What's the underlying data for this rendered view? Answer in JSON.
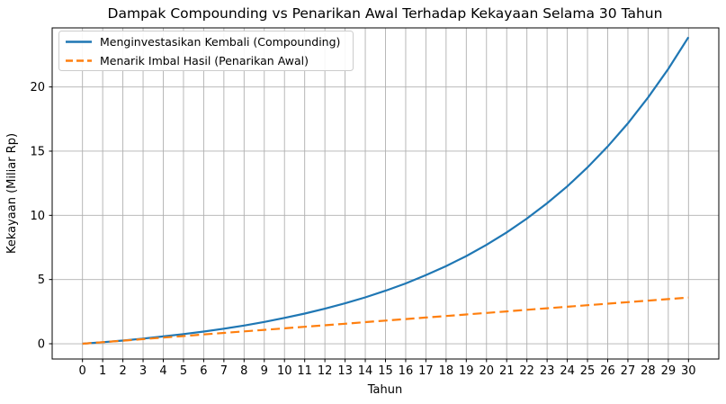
{
  "chart_data": {
    "type": "line",
    "title": "Dampak Compounding vs Penarikan Awal Terhadap Kekayaan Selama 30 Tahun",
    "xlabel": "Tahun",
    "ylabel": "Kekayaan (Miliar Rp)",
    "x": [
      0,
      1,
      2,
      3,
      4,
      5,
      6,
      7,
      8,
      9,
      10,
      11,
      12,
      13,
      14,
      15,
      16,
      17,
      18,
      19,
      20,
      21,
      22,
      23,
      24,
      25,
      26,
      27,
      28,
      29,
      30
    ],
    "xticks": [
      0,
      1,
      2,
      3,
      4,
      5,
      6,
      7,
      8,
      9,
      10,
      11,
      12,
      13,
      14,
      15,
      16,
      17,
      18,
      19,
      20,
      21,
      22,
      23,
      24,
      25,
      26,
      27,
      28,
      29,
      30
    ],
    "yticks": [
      0,
      5,
      10,
      15,
      20
    ],
    "xlim": [
      -1.5,
      31.5
    ],
    "ylim": [
      -1.19,
      24.6
    ],
    "grid": true,
    "grid_color": "#b0b0b0",
    "spine_color": "#000000",
    "legend_position": "upper-left",
    "series": [
      {
        "name": "Menginvestasikan Kembali (Compounding)",
        "color": "#1f77b4",
        "style": "solid",
        "values": [
          0,
          0.12,
          0.25,
          0.4,
          0.57,
          0.75,
          0.95,
          1.17,
          1.42,
          1.7,
          2.01,
          2.35,
          2.73,
          3.15,
          3.61,
          4.13,
          4.7,
          5.34,
          6.05,
          6.83,
          7.7,
          8.67,
          9.75,
          10.94,
          12.26,
          13.73,
          15.36,
          17.17,
          19.18,
          21.41,
          23.88
        ]
      },
      {
        "name": "Menarik Imbal Hasil (Penarikan Awal)",
        "color": "#ff7f0e",
        "style": "dashed",
        "values": [
          0,
          0.12,
          0.24,
          0.36,
          0.48,
          0.6,
          0.72,
          0.84,
          0.96,
          1.08,
          1.2,
          1.32,
          1.44,
          1.56,
          1.68,
          1.8,
          1.92,
          2.04,
          2.16,
          2.28,
          2.4,
          2.52,
          2.64,
          2.76,
          2.88,
          3.0,
          3.12,
          3.24,
          3.36,
          3.48,
          3.6
        ]
      }
    ]
  }
}
